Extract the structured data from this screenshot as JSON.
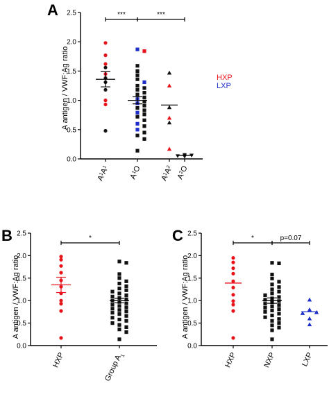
{
  "colors": {
    "red": "#e8141b",
    "blue": "#1f2fc9",
    "black": "#111111"
  },
  "panel_A": {
    "letter": "A",
    "ylabel": "A antigen / VWF:Ag ratio",
    "legend": [
      {
        "label": "HXP",
        "color": "#e8141b"
      },
      {
        "label": "LXP",
        "color": "#1f2fc9"
      }
    ],
    "categories": [
      {
        "base": "A",
        "sup": "1",
        "base2": "A",
        "sup2": "1"
      },
      {
        "base": "A",
        "sup": "1",
        "base2": "O",
        "sup2": ""
      },
      {
        "base": "A",
        "sup": "1",
        "base2": "A",
        "sup2": "2"
      },
      {
        "base": "A",
        "sup": "2",
        "base2": "O",
        "sup2": ""
      }
    ],
    "significance": [
      {
        "from": 0,
        "to": 1,
        "label": "***"
      },
      {
        "from": 1,
        "to": 3,
        "label": "***"
      }
    ]
  },
  "panel_B": {
    "letter": "B",
    "ylabel": "A antigen / VWF:Ag ratio",
    "categories": [
      {
        "base": "HXP",
        "sub": ""
      },
      {
        "base": "Group A",
        "sub": "1"
      }
    ],
    "significance": [
      {
        "from": 0,
        "to": 1,
        "label": "*"
      }
    ]
  },
  "panel_C": {
    "letter": "C",
    "ylabel": "A antigen / VWF:Ag ratio",
    "categories": [
      {
        "base": "HXP",
        "sub": ""
      },
      {
        "base": "NXP",
        "sub": ""
      },
      {
        "base": "LXP",
        "sub": ""
      }
    ],
    "significance": [
      {
        "from": 0,
        "to": 1,
        "label": "*"
      },
      {
        "from": 1,
        "to": 2,
        "label": "p=0.07"
      }
    ]
  },
  "chart_data": [
    {
      "panel": "A",
      "type": "scatter",
      "ylabel": "A antigen / VWF:Ag ratio",
      "ylim": [
        0,
        2.5
      ],
      "yticks": [
        0,
        0.5,
        1.0,
        1.5,
        2.0,
        2.5
      ],
      "yticklabels": [
        "0.0",
        "0.5",
        "1.0",
        "1.5",
        "2.0",
        "2.5"
      ],
      "categories": [
        "A1A1",
        "A1O",
        "A1A2",
        "A2O"
      ],
      "series": [
        {
          "category": "A1A1",
          "marker": "circle",
          "points": [
            {
              "y": 1.98,
              "color": "red"
            },
            {
              "y": 1.77,
              "color": "red"
            },
            {
              "y": 1.62,
              "color": "red"
            },
            {
              "y": 1.56,
              "color": "black"
            },
            {
              "y": 1.45,
              "color": "red"
            },
            {
              "y": 1.38,
              "color": "black"
            },
            {
              "y": 1.31,
              "color": "black"
            },
            {
              "y": 1.18,
              "color": "black"
            },
            {
              "y": 1.0,
              "color": "red"
            },
            {
              "y": 0.93,
              "color": "red"
            },
            {
              "y": 0.48,
              "color": "black"
            }
          ],
          "mean": 1.36,
          "sem": [
            1.23,
            1.49
          ]
        },
        {
          "category": "A1O",
          "marker": "square",
          "points": [
            {
              "y": 1.87,
              "color": "blue"
            },
            {
              "y": 1.84,
              "color": "red"
            },
            {
              "y": 1.59,
              "color": "black"
            },
            {
              "y": 1.5,
              "color": "black"
            },
            {
              "y": 1.43,
              "color": "black"
            },
            {
              "y": 1.36,
              "color": "black"
            },
            {
              "y": 1.31,
              "color": "blue"
            },
            {
              "y": 1.25,
              "color": "black"
            },
            {
              "y": 1.21,
              "color": "black"
            },
            {
              "y": 1.18,
              "color": "black"
            },
            {
              "y": 1.13,
              "color": "black"
            },
            {
              "y": 1.1,
              "color": "black"
            },
            {
              "y": 1.05,
              "color": "black"
            },
            {
              "y": 1.02,
              "color": "blue"
            },
            {
              "y": 0.98,
              "color": "black"
            },
            {
              "y": 0.95,
              "color": "blue"
            },
            {
              "y": 0.91,
              "color": "black"
            },
            {
              "y": 0.87,
              "color": "black"
            },
            {
              "y": 0.83,
              "color": "black"
            },
            {
              "y": 0.79,
              "color": "blue"
            },
            {
              "y": 0.76,
              "color": "black"
            },
            {
              "y": 0.72,
              "color": "black"
            },
            {
              "y": 0.66,
              "color": "black"
            },
            {
              "y": 0.6,
              "color": "blue"
            },
            {
              "y": 0.56,
              "color": "black"
            },
            {
              "y": 0.5,
              "color": "blue"
            },
            {
              "y": 0.45,
              "color": "black"
            },
            {
              "y": 0.4,
              "color": "black"
            },
            {
              "y": 0.34,
              "color": "black"
            },
            {
              "y": 0.14,
              "color": "black"
            }
          ],
          "mean": 1.0,
          "sem": [
            0.94,
            1.06
          ]
        },
        {
          "category": "A1A2",
          "marker": "triangle",
          "points": [
            {
              "y": 1.47,
              "color": "black"
            },
            {
              "y": 1.25,
              "color": "red"
            },
            {
              "y": 0.88,
              "color": "black"
            },
            {
              "y": 0.7,
              "color": "red"
            },
            {
              "y": 0.62,
              "color": "black"
            },
            {
              "y": 0.17,
              "color": "red"
            }
          ],
          "mean": 0.92
        },
        {
          "category": "A2O",
          "marker": "triangle-down",
          "points": [
            {
              "y": 0.07,
              "color": "black"
            },
            {
              "y": 0.06,
              "color": "black"
            },
            {
              "y": 0.05,
              "color": "black"
            },
            {
              "y": 0.05,
              "color": "black"
            },
            {
              "y": 0.04,
              "color": "black"
            }
          ],
          "mean": 0.06
        }
      ],
      "legend": [
        "HXP",
        "LXP"
      ],
      "significance": [
        {
          "between": [
            "A1A1",
            "A1O"
          ],
          "label": "***"
        },
        {
          "between": [
            "A1O",
            "A2O"
          ],
          "label": "***"
        }
      ]
    },
    {
      "panel": "B",
      "type": "scatter",
      "ylabel": "A antigen / VWF:Ag ratio",
      "ylim": [
        0,
        2.5
      ],
      "yticks": [
        0,
        0.5,
        1.0,
        1.5,
        2.0,
        2.5
      ],
      "yticklabels": [
        "0.0",
        "0.5",
        "1.0",
        "1.5",
        "2.0",
        "2.5"
      ],
      "categories": [
        "HXP",
        "Group A1"
      ],
      "series": [
        {
          "category": "HXP",
          "marker": "circle",
          "color": "red",
          "values": [
            1.98,
            1.91,
            1.77,
            1.62,
            1.45,
            1.31,
            1.16,
            1.0,
            0.93,
            0.77,
            0.17
          ],
          "mean": 1.35,
          "sem": [
            1.18,
            1.52
          ]
        },
        {
          "category": "Group A1",
          "marker": "square",
          "color": "black",
          "values": [
            1.87,
            1.84,
            1.59,
            1.5,
            1.43,
            1.38,
            1.32,
            1.27,
            1.23,
            1.2,
            1.16,
            1.12,
            1.09,
            1.06,
            1.03,
            1.0,
            0.97,
            0.94,
            0.91,
            0.88,
            0.85,
            0.82,
            0.79,
            0.76,
            0.73,
            0.7,
            0.66,
            0.62,
            0.58,
            0.55,
            0.5,
            0.46,
            0.41,
            0.36,
            0.3,
            0.14
          ],
          "mean": 1.0,
          "sem": [
            0.95,
            1.05
          ]
        }
      ],
      "significance": [
        {
          "between": [
            "HXP",
            "Group A1"
          ],
          "label": "*"
        }
      ]
    },
    {
      "panel": "C",
      "type": "scatter",
      "ylabel": "A antigen / VWF:Ag ratio",
      "ylim": [
        0,
        2.5
      ],
      "yticks": [
        0,
        0.5,
        1.0,
        1.5,
        2.0,
        2.5
      ],
      "yticklabels": [
        "0.0",
        "0.5",
        "1.0",
        "1.5",
        "2.0",
        "2.5"
      ],
      "categories": [
        "HXP",
        "NXP",
        "LXP"
      ],
      "series": [
        {
          "category": "HXP",
          "marker": "circle",
          "color": "red",
          "values": [
            1.95,
            1.85,
            1.72,
            1.6,
            1.43,
            1.29,
            1.13,
            0.99,
            0.91,
            0.77,
            0.17
          ],
          "mean": 1.39
        },
        {
          "category": "NXP",
          "marker": "square",
          "color": "black",
          "values": [
            1.84,
            1.83,
            1.58,
            1.49,
            1.42,
            1.36,
            1.3,
            1.25,
            1.2,
            1.16,
            1.12,
            1.08,
            1.05,
            1.02,
            0.99,
            0.96,
            0.93,
            0.9,
            0.87,
            0.84,
            0.81,
            0.78,
            0.75,
            0.71,
            0.67,
            0.63,
            0.59,
            0.55,
            0.5,
            0.45,
            0.4,
            0.34,
            0.14
          ],
          "mean": 1.0,
          "sem": [
            0.94,
            1.06
          ]
        },
        {
          "category": "LXP",
          "marker": "triangle",
          "color": "blue",
          "values": [
            1.02,
            0.8,
            0.74,
            0.72,
            0.6,
            0.47
          ],
          "mean": 0.75
        }
      ],
      "significance": [
        {
          "between": [
            "HXP",
            "NXP"
          ],
          "label": "*"
        },
        {
          "between": [
            "NXP",
            "LXP"
          ],
          "label": "p=0.07"
        }
      ]
    }
  ]
}
